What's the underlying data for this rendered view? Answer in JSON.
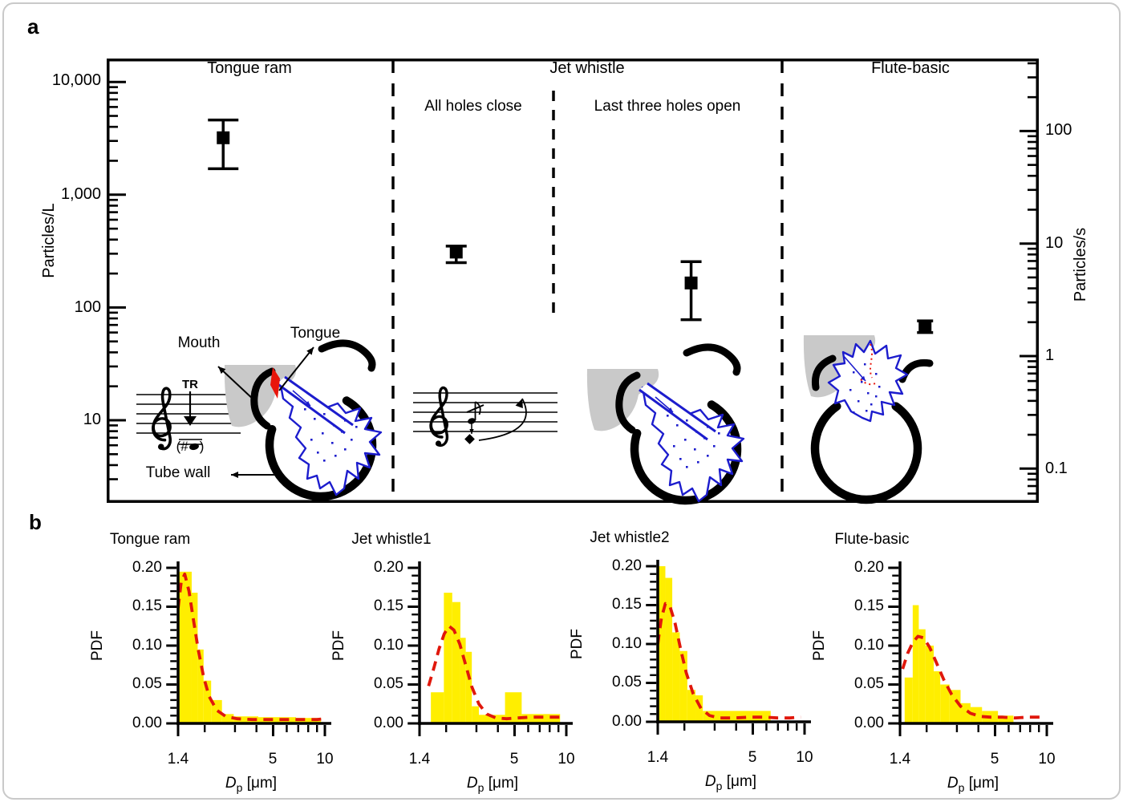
{
  "figure": {
    "panel_a_label": "a",
    "panel_b_label": "b",
    "colors": {
      "bar_yellow": "#ffee00",
      "curve_red": "#e0170b",
      "plume_blue": "#1c1ccd",
      "mouth_gray": "#c9c9c9",
      "marker_black": "#000000"
    }
  },
  "panel_a": {
    "left_axis": {
      "label": "Particles/L",
      "tick_labels": [
        "10,000",
        "1,000",
        "100",
        "10"
      ]
    },
    "right_axis": {
      "label": "Particles/s",
      "tick_labels": [
        "100",
        "10",
        "1",
        "0.1"
      ]
    },
    "sections": [
      {
        "title": "Tongue ram"
      },
      {
        "title": "Jet whistle",
        "subtitles": [
          "All holes close",
          "Last three holes open"
        ]
      },
      {
        "title": "Flute-basic"
      }
    ],
    "annotations": {
      "mouth": "Mouth",
      "tongue": "Tongue",
      "tube_wall": "Tube wall",
      "trill_mark": "TR",
      "note_prefix": "(#",
      "note_suffix": ")"
    },
    "series": [
      {
        "name": "Tongue ram",
        "particles_per_L": 3200,
        "err_low": 1700,
        "err_high": 4600,
        "particles_per_s": 87,
        "x_frac": 0.125,
        "cap_w": 38
      },
      {
        "name": "Jet whistle - all holes close",
        "particles_per_L": 310,
        "err_low": 250,
        "err_high": 350,
        "particles_per_s": 8.5,
        "x_frac": 0.375,
        "cap_w": 26
      },
      {
        "name": "Jet whistle - last three holes open",
        "particles_per_L": 165,
        "err_low": 78,
        "err_high": 255,
        "particles_per_s": 4.5,
        "x_frac": 0.627,
        "cap_w": 26
      },
      {
        "name": "Flute-basic",
        "particles_per_L": 68,
        "err_low": 60,
        "err_high": 76,
        "particles_per_s": 1.8,
        "x_frac": 0.878,
        "cap_w": 20
      }
    ]
  },
  "panel_b": {
    "ylabel": "PDF",
    "y_tick_labels": [
      "0.20",
      "0.15",
      "0.10",
      "0.05",
      "0.00"
    ],
    "x_tick_labels": [
      "1.4",
      "5",
      "10"
    ],
    "xlabel_main": "D",
    "xlabel_sub": "p",
    "xlabel_unit": " [μm]"
  },
  "chart_data": [
    {
      "type": "scatter",
      "title": "Particle emission by flute technique",
      "yscale": "log",
      "ylabel_left": "Particles/L",
      "ylabel_right": "Particles/s",
      "ylim_left": [
        2,
        19000
      ],
      "ylim_right": [
        0.05,
        440
      ],
      "categories": [
        "Tongue ram",
        "Jet whistle (all holes close)",
        "Jet whistle (last three holes open)",
        "Flute-basic"
      ],
      "values_particles_per_L": [
        3200,
        310,
        165,
        68
      ],
      "err_low": [
        1700,
        250,
        78,
        60
      ],
      "err_high": [
        4600,
        350,
        255,
        76
      ],
      "values_particles_per_s": [
        87,
        8.5,
        4.5,
        1.8
      ]
    },
    {
      "type": "bar",
      "title": "Tongue ram",
      "xlabel": "Dp [μm]",
      "ylabel": "PDF",
      "xscale": "log",
      "xlim": [
        1.4,
        10
      ],
      "ylim": [
        0,
        0.2
      ],
      "xticks_major": [
        1.4,
        5,
        10
      ],
      "xticks_minor": [
        2,
        3,
        4,
        6,
        7,
        8,
        9
      ],
      "bars": [
        [
          1.4,
          1.68,
          0.195
        ],
        [
          1.68,
          1.82,
          0.168
        ],
        [
          1.82,
          1.97,
          0.095
        ],
        [
          1.97,
          2.18,
          0.055
        ],
        [
          2.18,
          2.52,
          0.03
        ],
        [
          2.52,
          2.95,
          0.012
        ],
        [
          2.95,
          4.1,
          0.009
        ],
        [
          4.1,
          6.8,
          0.008
        ],
        [
          6.8,
          9.5,
          0.007
        ]
      ],
      "curve": [
        [
          1.4,
          0.148
        ],
        [
          1.46,
          0.182
        ],
        [
          1.53,
          0.192
        ],
        [
          1.62,
          0.17
        ],
        [
          1.72,
          0.133
        ],
        [
          1.83,
          0.096
        ],
        [
          1.97,
          0.06
        ],
        [
          2.12,
          0.035
        ],
        [
          2.35,
          0.017
        ],
        [
          2.65,
          0.009
        ],
        [
          3.1,
          0.006
        ],
        [
          3.8,
          0.005
        ],
        [
          4.8,
          0.005
        ],
        [
          6.0,
          0.005
        ],
        [
          7.5,
          0.005
        ],
        [
          9.0,
          0.005
        ],
        [
          9.9,
          0.006
        ]
      ]
    },
    {
      "type": "bar",
      "title": "Jet whistle1",
      "xlabel": "Dp [μm]",
      "ylabel": "PDF",
      "xscale": "log",
      "xlim": [
        1.4,
        10
      ],
      "ylim": [
        0,
        0.2
      ],
      "xticks_major": [
        1.4,
        5,
        10
      ],
      "xticks_minor": [
        2,
        3,
        4,
        6,
        7,
        8,
        9
      ],
      "bars": [
        [
          1.63,
          1.94,
          0.04
        ],
        [
          1.94,
          2.17,
          0.168
        ],
        [
          2.17,
          2.42,
          0.156
        ],
        [
          2.42,
          2.6,
          0.11
        ],
        [
          2.6,
          2.82,
          0.092
        ],
        [
          2.82,
          3.1,
          0.022
        ],
        [
          3.1,
          4.4,
          0.011
        ],
        [
          4.4,
          5.5,
          0.04
        ],
        [
          5.5,
          9.2,
          0.012
        ]
      ],
      "curve": [
        [
          1.58,
          0.048
        ],
        [
          1.7,
          0.072
        ],
        [
          1.82,
          0.096
        ],
        [
          1.95,
          0.115
        ],
        [
          2.08,
          0.125
        ],
        [
          2.22,
          0.12
        ],
        [
          2.4,
          0.102
        ],
        [
          2.6,
          0.075
        ],
        [
          2.82,
          0.047
        ],
        [
          3.1,
          0.025
        ],
        [
          3.45,
          0.012
        ],
        [
          3.9,
          0.007
        ],
        [
          4.5,
          0.006
        ],
        [
          5.2,
          0.007
        ],
        [
          6.2,
          0.008
        ],
        [
          7.5,
          0.008
        ],
        [
          8.8,
          0.008
        ],
        [
          9.6,
          0.008
        ]
      ]
    },
    {
      "type": "bar",
      "title": "Jet whistle2",
      "xlabel": "Dp [μm]",
      "ylabel": "PDF",
      "xscale": "log",
      "xlim": [
        1.4,
        10
      ],
      "ylim": [
        0,
        0.2
      ],
      "xticks_major": [
        1.4,
        5,
        10
      ],
      "xticks_minor": [
        2,
        3,
        4,
        6,
        7,
        8,
        9
      ],
      "bars": [
        [
          1.4,
          1.55,
          0.2
        ],
        [
          1.55,
          1.7,
          0.185
        ],
        [
          1.7,
          1.88,
          0.115
        ],
        [
          1.88,
          2.08,
          0.091
        ],
        [
          2.08,
          2.32,
          0.041
        ],
        [
          2.32,
          2.56,
          0.034
        ],
        [
          2.56,
          6.35,
          0.014
        ]
      ],
      "curve": [
        [
          1.4,
          0.1
        ],
        [
          1.47,
          0.133
        ],
        [
          1.55,
          0.152
        ],
        [
          1.64,
          0.15
        ],
        [
          1.76,
          0.128
        ],
        [
          1.9,
          0.094
        ],
        [
          2.05,
          0.063
        ],
        [
          2.25,
          0.036
        ],
        [
          2.5,
          0.017
        ],
        [
          2.8,
          0.008
        ],
        [
          3.2,
          0.005
        ],
        [
          3.9,
          0.005
        ],
        [
          4.8,
          0.006
        ],
        [
          5.8,
          0.006
        ],
        [
          7.0,
          0.005
        ],
        [
          8.2,
          0.005
        ],
        [
          9.5,
          0.006
        ]
      ]
    },
    {
      "type": "bar",
      "title": "Flute-basic",
      "xlabel": "Dp [μm]",
      "ylabel": "PDF",
      "xscale": "log",
      "xlim": [
        1.4,
        10
      ],
      "ylim": [
        0,
        0.2
      ],
      "xticks_major": [
        1.4,
        5,
        10
      ],
      "xticks_minor": [
        2,
        3,
        4,
        6,
        7,
        8,
        9
      ],
      "bars": [
        [
          1.49,
          1.66,
          0.059
        ],
        [
          1.66,
          1.8,
          0.152
        ],
        [
          1.8,
          1.97,
          0.121
        ],
        [
          1.97,
          2.2,
          0.1
        ],
        [
          2.2,
          2.4,
          0.067
        ],
        [
          2.4,
          2.72,
          0.05
        ],
        [
          2.72,
          3.15,
          0.043
        ],
        [
          3.15,
          3.6,
          0.026
        ],
        [
          3.6,
          4.2,
          0.021
        ],
        [
          4.2,
          5.2,
          0.016
        ],
        [
          5.2,
          6.4,
          0.01
        ]
      ],
      "curve": [
        [
          1.45,
          0.07
        ],
        [
          1.55,
          0.09
        ],
        [
          1.66,
          0.104
        ],
        [
          1.78,
          0.112
        ],
        [
          1.92,
          0.11
        ],
        [
          2.08,
          0.098
        ],
        [
          2.28,
          0.078
        ],
        [
          2.52,
          0.056
        ],
        [
          2.8,
          0.037
        ],
        [
          3.15,
          0.022
        ],
        [
          3.6,
          0.013
        ],
        [
          4.1,
          0.009
        ],
        [
          4.7,
          0.008
        ],
        [
          5.5,
          0.008
        ],
        [
          6.5,
          0.007
        ],
        [
          7.8,
          0.008
        ],
        [
          9.3,
          0.008
        ]
      ]
    }
  ]
}
